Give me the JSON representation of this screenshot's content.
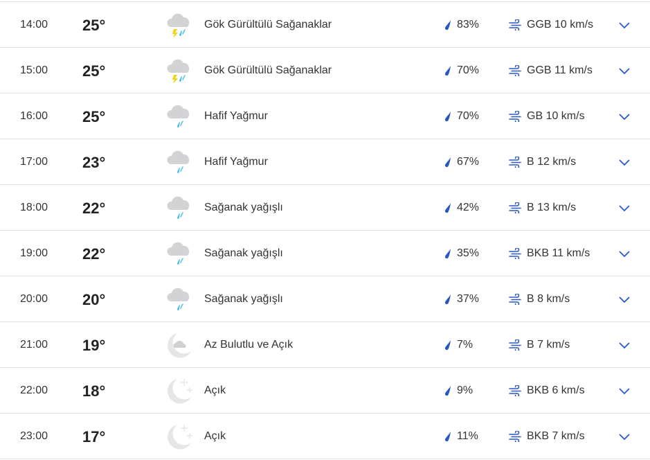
{
  "colors": {
    "accent": "#2a56c6",
    "thunder": "#f2d311",
    "rain": "#4fc3e6",
    "cloud": "#d3d3d5",
    "moon": "#e6e6e9"
  },
  "rows": [
    {
      "time": "14:00",
      "temp": "25°",
      "icon": "thunderstorm-icon",
      "condition": "Gök Gürültülü Sağanaklar",
      "precip": "83%",
      "wind": "GGB 10 km/s"
    },
    {
      "time": "15:00",
      "temp": "25°",
      "icon": "thunderstorm-icon",
      "condition": "Gök Gürültülü Sağanaklar",
      "precip": "70%",
      "wind": "GGB 11 km/s"
    },
    {
      "time": "16:00",
      "temp": "25°",
      "icon": "rain-cloud-icon",
      "condition": "Hafif Yağmur",
      "precip": "70%",
      "wind": "GB 10 km/s"
    },
    {
      "time": "17:00",
      "temp": "23°",
      "icon": "rain-cloud-icon",
      "condition": "Hafif Yağmur",
      "precip": "67%",
      "wind": "B 12 km/s"
    },
    {
      "time": "18:00",
      "temp": "22°",
      "icon": "rain-cloud-icon",
      "condition": "Sağanak yağışlı",
      "precip": "42%",
      "wind": "B 13 km/s"
    },
    {
      "time": "19:00",
      "temp": "22°",
      "icon": "rain-cloud-icon",
      "condition": "Sağanak yağışlı",
      "precip": "35%",
      "wind": "BKB 11 km/s"
    },
    {
      "time": "20:00",
      "temp": "20°",
      "icon": "rain-cloud-icon",
      "condition": "Sağanak yağışlı",
      "precip": "37%",
      "wind": "B 8 km/s"
    },
    {
      "time": "21:00",
      "temp": "19°",
      "icon": "moon-cloud-icon",
      "condition": "Az Bulutlu ve Açık",
      "precip": "7%",
      "wind": "B 7 km/s"
    },
    {
      "time": "22:00",
      "temp": "18°",
      "icon": "moon-stars-icon",
      "condition": "Açık",
      "precip": "9%",
      "wind": "BKB 6 km/s"
    },
    {
      "time": "23:00",
      "temp": "17°",
      "icon": "moon-stars-icon",
      "condition": "Açık",
      "precip": "11%",
      "wind": "BKB 7 km/s"
    }
  ]
}
